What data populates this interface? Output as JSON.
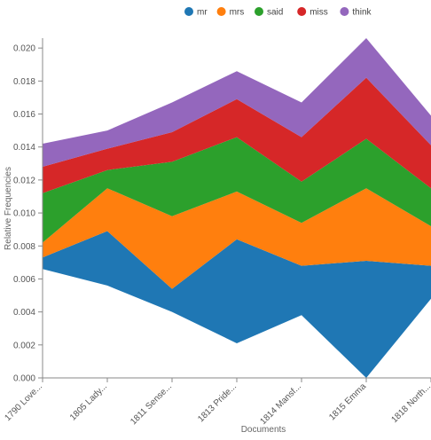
{
  "chart_data": {
    "type": "area",
    "stacking": "stream",
    "xlabel": "Documents",
    "ylabel": "Relative Frequencies",
    "ylim": [
      0,
      0.0206
    ],
    "yticks": [
      "0.000",
      "0.002",
      "0.004",
      "0.006",
      "0.008",
      "0.010",
      "0.012",
      "0.014",
      "0.016",
      "0.018",
      "0.020"
    ],
    "ytick_values": [
      0,
      0.002,
      0.004,
      0.006,
      0.008,
      0.01,
      0.012,
      0.014,
      0.016,
      0.018,
      0.02
    ],
    "categories": [
      "1790 Love...",
      "1805 Lady...",
      "1811 Sense...",
      "1813 Pride...",
      "1814 Mansf...",
      "1815 Emma",
      "1818 North..."
    ],
    "legend_position": "top-center",
    "grid": false,
    "baseline": [
      0.0066,
      0.0056,
      0.004,
      0.0021,
      0.0038,
      0.0,
      0.0048
    ],
    "series": [
      {
        "name": "mr",
        "color": "#1f77b4",
        "values": [
          0.0007,
          0.0033,
          0.0014,
          0.0063,
          0.003,
          0.0071,
          0.002
        ]
      },
      {
        "name": "mrs",
        "color": "#ff7f0e",
        "values": [
          0.0009,
          0.0026,
          0.0044,
          0.0029,
          0.0026,
          0.0044,
          0.0024
        ]
      },
      {
        "name": "said",
        "color": "#2ca02c",
        "values": [
          0.003,
          0.0011,
          0.0033,
          0.0033,
          0.0025,
          0.003,
          0.0023
        ]
      },
      {
        "name": "miss",
        "color": "#d62728",
        "values": [
          0.0016,
          0.0013,
          0.0018,
          0.0023,
          0.0027,
          0.0037,
          0.0026
        ]
      },
      {
        "name": "think",
        "color": "#9467bd",
        "values": [
          0.0014,
          0.0011,
          0.0018,
          0.0017,
          0.0021,
          0.0024,
          0.0018
        ]
      }
    ]
  }
}
